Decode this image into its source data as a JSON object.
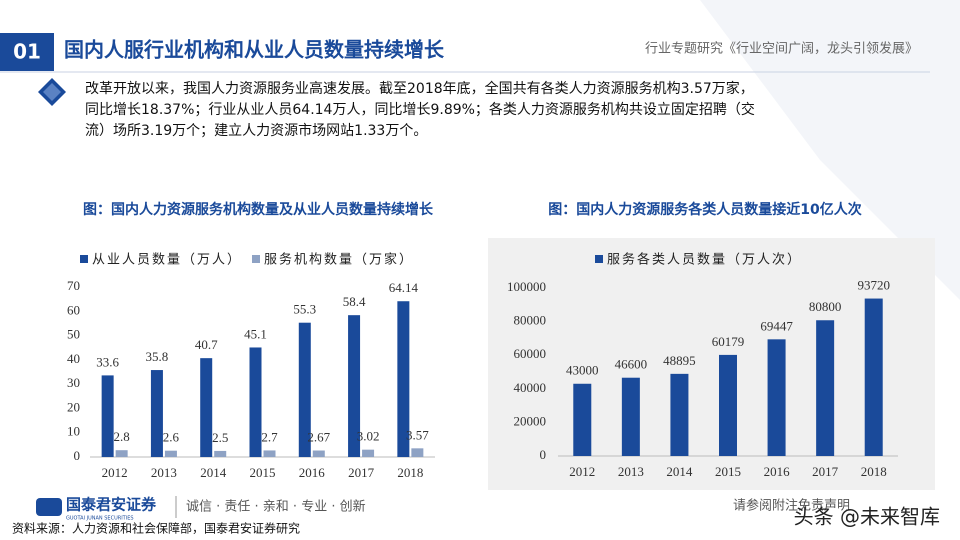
{
  "header": {
    "number": "01",
    "title": "国内人服行业机构和从业人员数量持续增长",
    "report": "行业专题研究《行业空间广阔，龙头引领发展》"
  },
  "body": {
    "lines": [
      "改革开放以来，我国人力资源服务业高速发展。截至2018年底，全国共有各类人力资源服务机构3.57万家，",
      "同比增长18.37%；行业从业人员64.14万人，同比增长9.89%；各类人力资源服务机构共设立固定招聘（交",
      "流）场所3.19万个；建立人力资源市场网站1.33万个。"
    ]
  },
  "chart_data": [
    {
      "type": "bar",
      "title": "图：国内人力资源服务机构数量及从业人员数量持续增长",
      "categories": [
        "2012",
        "2013",
        "2014",
        "2015",
        "2016",
        "2017",
        "2018"
      ],
      "series": [
        {
          "name": "从业人员数量（万人）",
          "color": "#1a4a9a",
          "values": [
            33.6,
            35.8,
            40.7,
            45.1,
            55.3,
            58.4,
            64.14
          ]
        },
        {
          "name": "服务机构数量（万家）",
          "color": "#8ea2c4",
          "values": [
            2.8,
            2.6,
            2.5,
            2.7,
            2.67,
            3.02,
            3.57
          ]
        }
      ],
      "ylim": [
        0,
        70
      ],
      "yticks": [
        0,
        10,
        20,
        30,
        40,
        50,
        60,
        70
      ],
      "grid": false
    },
    {
      "type": "bar",
      "title": "图：国内人力资源服务各类人员数量接近10亿人次",
      "categories": [
        "2012",
        "2013",
        "2014",
        "2015",
        "2016",
        "2017",
        "2018"
      ],
      "series": [
        {
          "name": "服务各类人员数量（万人次）",
          "color": "#1a4a9a",
          "values": [
            43000,
            46600,
            48895,
            60179,
            69447,
            80800,
            93720
          ]
        }
      ],
      "ylim": [
        0,
        100000
      ],
      "yticks": [
        0,
        20000,
        40000,
        60000,
        80000,
        100000
      ],
      "grid": false
    }
  ],
  "footer": {
    "company": "国泰君安证券",
    "company_en": "GUOTAI JUNAN SECURITIES",
    "slogan": "诚信 · 责任 · 亲和 · 专业 · 创新",
    "source": "资料来源：人力资源和社会保障部，国泰君安证券研究",
    "disclaimer": "请参阅附注免责声明",
    "watermark": "头条 @未来智库"
  }
}
